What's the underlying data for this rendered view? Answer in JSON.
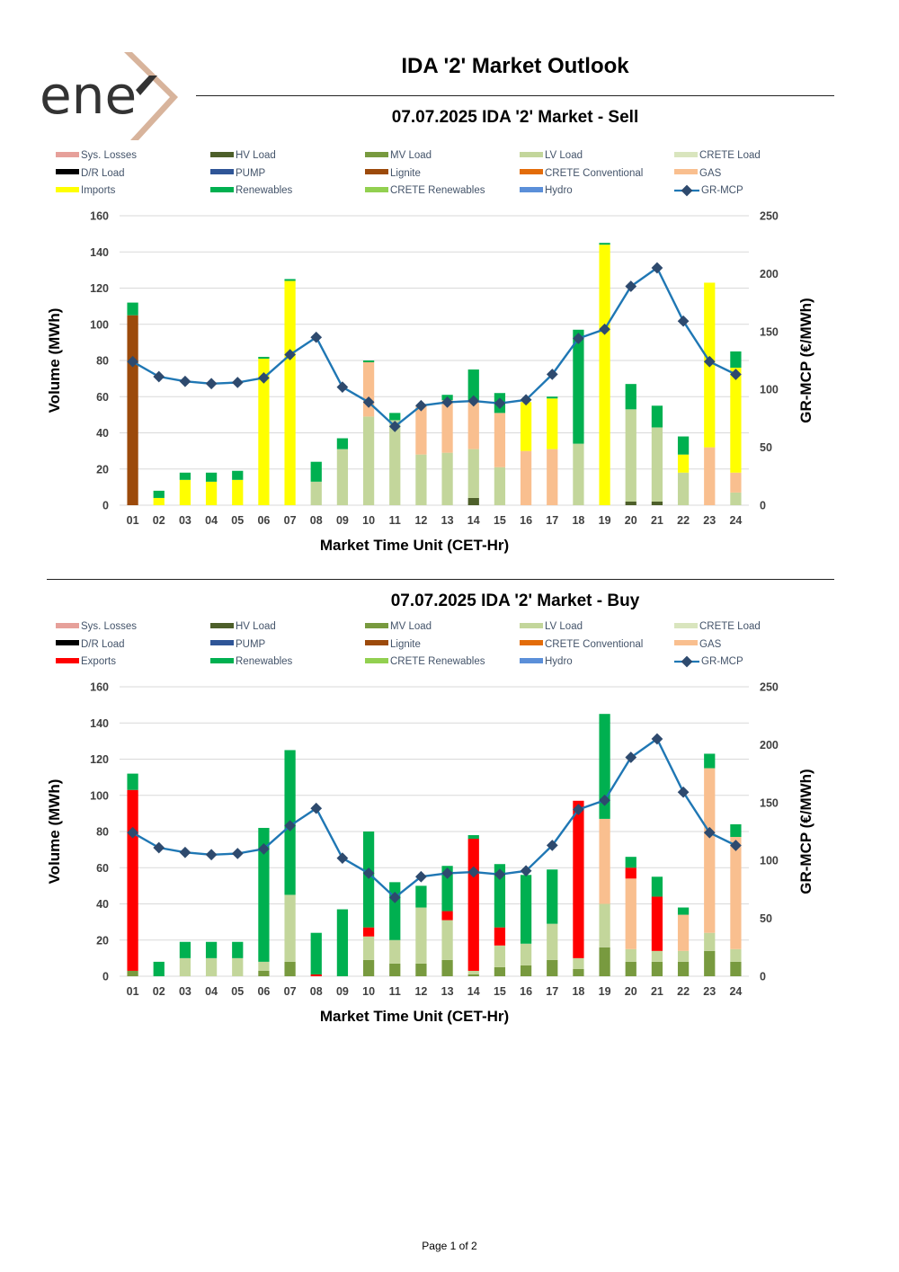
{
  "brand": {
    "logo_text": "ene",
    "accent": "#D8B49C",
    "ink": "#333333"
  },
  "page_title": "IDA '2' Market Outlook",
  "footer": "Page 1 of 2",
  "colors": {
    "Sys. Losses": "#E6A09A",
    "HV Load": "#4D5F2A",
    "MV Load": "#789A3F",
    "LV Load": "#C3D69B",
    "CRETE Load": "#D9E5BE",
    "D/R Load": "#000000",
    "PUMP": "#2F5597",
    "Lignite": "#9C4A0B",
    "CRETE Conventional": "#E36C09",
    "GAS": "#F9BF8F",
    "Imports": "#FFFF00",
    "Exports": "#FF0000",
    "Renewables": "#00B050",
    "CRETE Renewables": "#92D050",
    "Hydro": "#5B8FD9",
    "GR-MCP": "#1F77B4",
    "GR-MCP-marker": "#2E4A6E"
  },
  "chart_data": [
    {
      "type": "bar",
      "stacked": true,
      "title": "07.07.2025  IDA '2' Market - Sell",
      "xlabel": "Market Time Unit (CET-Hr)",
      "ylabel": "Volume (MWh)",
      "y2label": "GR-MCP (€/MWh)",
      "ylim": [
        0,
        160
      ],
      "yticks": [
        "0",
        "20",
        "40",
        "60",
        "80",
        "100",
        "120",
        "140",
        "160"
      ],
      "y2lim": [
        0,
        250
      ],
      "y2ticks": [
        "0",
        "50",
        "100",
        "150",
        "200",
        "250"
      ],
      "legend": [
        "Sys. Losses",
        "HV Load",
        "MV Load",
        "LV Load",
        "CRETE Load",
        "D/R Load",
        "PUMP",
        "Lignite",
        "CRETE Conventional",
        "GAS",
        "Imports",
        "Renewables",
        "CRETE Renewables",
        "Hydro",
        "GR-MCP"
      ],
      "categories": [
        "01",
        "02",
        "03",
        "04",
        "05",
        "06",
        "07",
        "08",
        "09",
        "10",
        "11",
        "12",
        "13",
        "14",
        "15",
        "16",
        "17",
        "18",
        "19",
        "20",
        "21",
        "22",
        "23",
        "24"
      ],
      "series": [
        {
          "name": "HV Load",
          "values": [
            0,
            0,
            0,
            0,
            0,
            0,
            0,
            0,
            0,
            0,
            0,
            0,
            0,
            4,
            0,
            0,
            0,
            0,
            0,
            2,
            2,
            0,
            0,
            0
          ]
        },
        {
          "name": "LV Load",
          "values": [
            0,
            0,
            0,
            0,
            0,
            0,
            0,
            13,
            31,
            49,
            47,
            28,
            29,
            27,
            21,
            0,
            0,
            34,
            0,
            51,
            41,
            18,
            0,
            7
          ]
        },
        {
          "name": "Lignite",
          "values": [
            105,
            0,
            0,
            0,
            0,
            0,
            0,
            0,
            0,
            0,
            0,
            0,
            0,
            0,
            0,
            0,
            0,
            0,
            0,
            0,
            0,
            0,
            0,
            0
          ]
        },
        {
          "name": "GAS",
          "values": [
            0,
            0,
            0,
            0,
            0,
            0,
            0,
            0,
            0,
            30,
            0,
            27,
            29,
            27,
            30,
            30,
            31,
            0,
            0,
            0,
            0,
            0,
            32,
            11
          ]
        },
        {
          "name": "Imports",
          "values": [
            0,
            4,
            14,
            13,
            14,
            81,
            124,
            0,
            0,
            0,
            0,
            0,
            0,
            0,
            0,
            27,
            28,
            0,
            144,
            0,
            0,
            10,
            91,
            58
          ]
        },
        {
          "name": "Renewables",
          "values": [
            7,
            4,
            4,
            5,
            5,
            1,
            1,
            11,
            6,
            1,
            4,
            0,
            3,
            17,
            11,
            0,
            1,
            63,
            1,
            14,
            12,
            10,
            0,
            9
          ]
        }
      ],
      "line": {
        "name": "GR-MCP",
        "values": [
          124,
          111,
          107,
          105,
          106,
          110,
          130,
          145,
          102,
          89,
          68,
          86,
          89,
          90,
          88,
          91,
          113,
          144,
          152,
          189,
          205,
          159,
          124,
          113
        ]
      }
    },
    {
      "type": "bar",
      "stacked": true,
      "title": "07.07.2025  IDA '2' Market - Buy",
      "xlabel": "Market Time Unit (CET-Hr)",
      "ylabel": "Volume (MWh)",
      "y2label": "GR-MCP (€/MWh)",
      "ylim": [
        0,
        160
      ],
      "yticks": [
        "0",
        "20",
        "40",
        "60",
        "80",
        "100",
        "120",
        "140",
        "160"
      ],
      "y2lim": [
        0,
        250
      ],
      "y2ticks": [
        "0",
        "50",
        "100",
        "150",
        "200",
        "250"
      ],
      "legend": [
        "Sys. Losses",
        "HV Load",
        "MV Load",
        "LV Load",
        "CRETE Load",
        "D/R Load",
        "PUMP",
        "Lignite",
        "CRETE Conventional",
        "GAS",
        "Exports",
        "Renewables",
        "CRETE Renewables",
        "Hydro",
        "GR-MCP"
      ],
      "categories": [
        "01",
        "02",
        "03",
        "04",
        "05",
        "06",
        "07",
        "08",
        "09",
        "10",
        "11",
        "12",
        "13",
        "14",
        "15",
        "16",
        "17",
        "18",
        "19",
        "20",
        "21",
        "22",
        "23",
        "24"
      ],
      "series": [
        {
          "name": "MV Load",
          "values": [
            3,
            0,
            0,
            0,
            0,
            3,
            8,
            0,
            0,
            9,
            7,
            7,
            9,
            1,
            5,
            6,
            9,
            4,
            16,
            8,
            8,
            8,
            14,
            8
          ]
        },
        {
          "name": "LV Load",
          "values": [
            0,
            0,
            10,
            10,
            10,
            5,
            37,
            0,
            0,
            13,
            13,
            31,
            22,
            2,
            12,
            12,
            20,
            6,
            24,
            7,
            6,
            6,
            10,
            7
          ]
        },
        {
          "name": "GAS",
          "values": [
            0,
            0,
            0,
            0,
            0,
            0,
            0,
            0,
            0,
            0,
            0,
            0,
            0,
            0,
            0,
            0,
            0,
            0,
            47,
            39,
            0,
            20,
            91,
            62
          ]
        },
        {
          "name": "Exports",
          "values": [
            100,
            0,
            0,
            0,
            0,
            0,
            0,
            1,
            0,
            5,
            0,
            0,
            5,
            73,
            10,
            0,
            0,
            87,
            0,
            6,
            30,
            0,
            0,
            0
          ]
        },
        {
          "name": "Renewables",
          "values": [
            9,
            8,
            9,
            9,
            9,
            74,
            80,
            23,
            37,
            53,
            32,
            12,
            25,
            2,
            35,
            38,
            30,
            0,
            58,
            6,
            11,
            4,
            8,
            7
          ]
        }
      ],
      "line": {
        "name": "GR-MCP",
        "values": [
          124,
          111,
          107,
          105,
          106,
          110,
          130,
          145,
          102,
          89,
          68,
          86,
          89,
          90,
          88,
          91,
          113,
          144,
          152,
          189,
          205,
          159,
          124,
          113
        ]
      }
    }
  ]
}
